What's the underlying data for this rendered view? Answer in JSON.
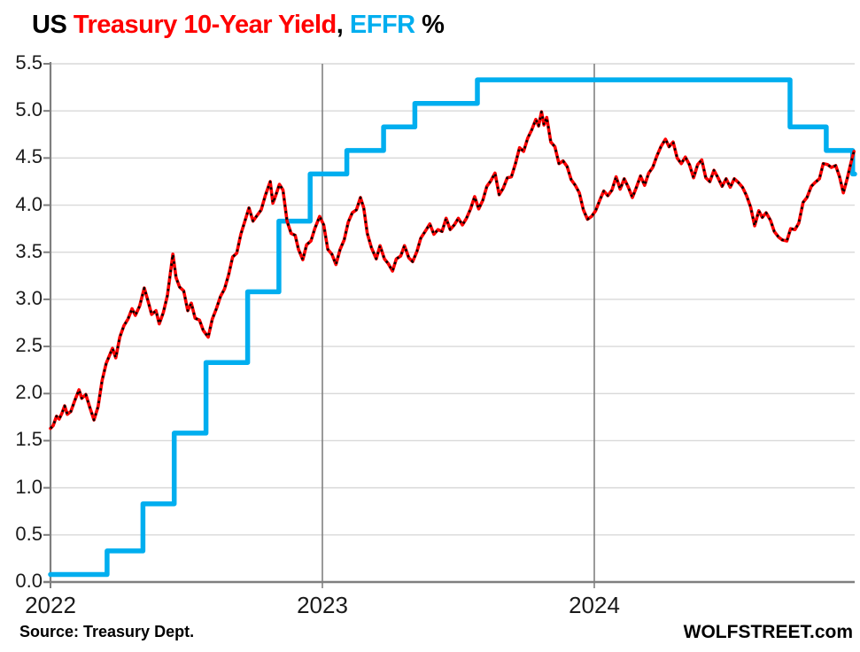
{
  "title": {
    "parts": [
      {
        "text": "US ",
        "color": "#000000"
      },
      {
        "text": "Treasury 10-Year Yield",
        "color": "#FF0000"
      },
      {
        "text": ", ",
        "color": "#000000"
      },
      {
        "text": "EFFR",
        "color": "#00AEEF"
      },
      {
        "text": " %",
        "color": "#000000"
      }
    ]
  },
  "footer": {
    "source": "Source: Treasury Dept.",
    "brand": "WOLFSTREET.com"
  },
  "chart_data": {
    "type": "line",
    "title": "US Treasury 10-Year Yield, EFFR %",
    "xlabel": "",
    "ylabel": "%",
    "ylim": [
      0,
      5.5
    ],
    "xlim": [
      2022,
      2024.96
    ],
    "grid": true,
    "legend_position": "colored-words-in-title",
    "yticks": [
      "0.0",
      "0.5",
      "1.0",
      "1.5",
      "2.0",
      "2.5",
      "3.0",
      "3.5",
      "4.0",
      "4.5",
      "5.0",
      "5.5"
    ],
    "xticks": [
      {
        "label": "2022",
        "x": 2022
      },
      {
        "label": "2023",
        "x": 2023
      },
      {
        "label": "2024",
        "x": 2024
      }
    ],
    "colors": {
      "background": "#FFFFFF",
      "grid": "#D9D9D9",
      "axis": "#7F7F7F",
      "year_line": "#808080",
      "effr_blue": "#00AEEF",
      "yield_red": "#FF0000",
      "dash_black": "#000000"
    },
    "series": [
      {
        "name": "EFFR",
        "draw": "step",
        "color": "#00AEEF",
        "stroke_width": 5.5,
        "points": [
          [
            2022.0,
            0.08
          ],
          [
            2022.208,
            0.33
          ],
          [
            2022.34,
            0.83
          ],
          [
            2022.455,
            1.58
          ],
          [
            2022.572,
            2.33
          ],
          [
            2022.725,
            3.08
          ],
          [
            2022.84,
            3.83
          ],
          [
            2022.955,
            4.33
          ],
          [
            2023.09,
            4.58
          ],
          [
            2023.225,
            4.83
          ],
          [
            2023.34,
            5.08
          ],
          [
            2023.57,
            5.33
          ],
          [
            2024.72,
            4.83
          ],
          [
            2024.853,
            4.58
          ],
          [
            2024.95,
            4.33
          ],
          [
            2024.958,
            4.33
          ]
        ]
      },
      {
        "name": "US Treasury 10-Year Yield",
        "draw": "line",
        "color": "#FF0000",
        "stroke_width": 3.6,
        "dash_overlay": {
          "color": "#000000",
          "stroke_width": 2.6,
          "dasharray": "2.6 4.6"
        },
        "points": [
          [
            2022.0,
            1.63
          ],
          [
            2022.01,
            1.66
          ],
          [
            2022.022,
            1.76
          ],
          [
            2022.032,
            1.73
          ],
          [
            2022.042,
            1.79
          ],
          [
            2022.052,
            1.87
          ],
          [
            2022.062,
            1.78
          ],
          [
            2022.075,
            1.81
          ],
          [
            2022.09,
            1.93
          ],
          [
            2022.105,
            2.04
          ],
          [
            2022.115,
            1.95
          ],
          [
            2022.13,
            1.99
          ],
          [
            2022.145,
            1.85
          ],
          [
            2022.16,
            1.72
          ],
          [
            2022.175,
            1.86
          ],
          [
            2022.19,
            2.14
          ],
          [
            2022.205,
            2.32
          ],
          [
            2022.228,
            2.48
          ],
          [
            2022.24,
            2.38
          ],
          [
            2022.255,
            2.6
          ],
          [
            2022.27,
            2.72
          ],
          [
            2022.285,
            2.79
          ],
          [
            2022.3,
            2.9
          ],
          [
            2022.312,
            2.83
          ],
          [
            2022.328,
            2.93
          ],
          [
            2022.345,
            3.12
          ],
          [
            2022.358,
            2.99
          ],
          [
            2022.372,
            2.84
          ],
          [
            2022.388,
            2.88
          ],
          [
            2022.4,
            2.74
          ],
          [
            2022.415,
            2.86
          ],
          [
            2022.43,
            3.04
          ],
          [
            2022.45,
            3.48
          ],
          [
            2022.462,
            3.23
          ],
          [
            2022.475,
            3.13
          ],
          [
            2022.49,
            3.09
          ],
          [
            2022.505,
            2.88
          ],
          [
            2022.518,
            2.96
          ],
          [
            2022.532,
            2.8
          ],
          [
            2022.548,
            2.78
          ],
          [
            2022.562,
            2.67
          ],
          [
            2022.58,
            2.6
          ],
          [
            2022.595,
            2.79
          ],
          [
            2022.61,
            2.9
          ],
          [
            2022.625,
            3.03
          ],
          [
            2022.64,
            3.11
          ],
          [
            2022.655,
            3.26
          ],
          [
            2022.67,
            3.45
          ],
          [
            2022.685,
            3.49
          ],
          [
            2022.7,
            3.69
          ],
          [
            2022.715,
            3.83
          ],
          [
            2022.73,
            3.97
          ],
          [
            2022.745,
            3.83
          ],
          [
            2022.76,
            3.89
          ],
          [
            2022.775,
            3.95
          ],
          [
            2022.79,
            4.1
          ],
          [
            2022.808,
            4.25
          ],
          [
            2022.818,
            4.02
          ],
          [
            2022.828,
            4.1
          ],
          [
            2022.842,
            4.22
          ],
          [
            2022.855,
            4.16
          ],
          [
            2022.87,
            3.83
          ],
          [
            2022.885,
            3.7
          ],
          [
            2022.9,
            3.68
          ],
          [
            2022.912,
            3.53
          ],
          [
            2022.928,
            3.42
          ],
          [
            2022.942,
            3.58
          ],
          [
            2022.958,
            3.62
          ],
          [
            2022.972,
            3.75
          ],
          [
            2022.99,
            3.88
          ],
          [
            2023.005,
            3.79
          ],
          [
            2023.02,
            3.53
          ],
          [
            2023.035,
            3.48
          ],
          [
            2023.05,
            3.37
          ],
          [
            2023.065,
            3.53
          ],
          [
            2023.08,
            3.63
          ],
          [
            2023.095,
            3.82
          ],
          [
            2023.11,
            3.92
          ],
          [
            2023.125,
            3.95
          ],
          [
            2023.14,
            4.08
          ],
          [
            2023.152,
            3.97
          ],
          [
            2023.165,
            3.7
          ],
          [
            2023.18,
            3.55
          ],
          [
            2023.198,
            3.43
          ],
          [
            2023.212,
            3.57
          ],
          [
            2023.228,
            3.43
          ],
          [
            2023.242,
            3.38
          ],
          [
            2023.258,
            3.3
          ],
          [
            2023.272,
            3.43
          ],
          [
            2023.288,
            3.46
          ],
          [
            2023.302,
            3.57
          ],
          [
            2023.318,
            3.44
          ],
          [
            2023.332,
            3.4
          ],
          [
            2023.348,
            3.51
          ],
          [
            2023.362,
            3.65
          ],
          [
            2023.378,
            3.72
          ],
          [
            2023.395,
            3.8
          ],
          [
            2023.41,
            3.69
          ],
          [
            2023.425,
            3.74
          ],
          [
            2023.44,
            3.72
          ],
          [
            2023.455,
            3.86
          ],
          [
            2023.47,
            3.74
          ],
          [
            2023.485,
            3.79
          ],
          [
            2023.5,
            3.86
          ],
          [
            2023.515,
            3.79
          ],
          [
            2023.53,
            3.86
          ],
          [
            2023.545,
            3.96
          ],
          [
            2023.56,
            4.09
          ],
          [
            2023.575,
            3.96
          ],
          [
            2023.59,
            4.05
          ],
          [
            2023.605,
            4.2
          ],
          [
            2023.62,
            4.26
          ],
          [
            2023.635,
            4.34
          ],
          [
            2023.65,
            4.11
          ],
          [
            2023.665,
            4.18
          ],
          [
            2023.68,
            4.29
          ],
          [
            2023.695,
            4.3
          ],
          [
            2023.71,
            4.44
          ],
          [
            2023.725,
            4.61
          ],
          [
            2023.74,
            4.57
          ],
          [
            2023.755,
            4.71
          ],
          [
            2023.77,
            4.8
          ],
          [
            2023.785,
            4.91
          ],
          [
            2023.795,
            4.84
          ],
          [
            2023.806,
            4.99
          ],
          [
            2023.815,
            4.85
          ],
          [
            2023.825,
            4.93
          ],
          [
            2023.84,
            4.67
          ],
          [
            2023.855,
            4.62
          ],
          [
            2023.87,
            4.44
          ],
          [
            2023.885,
            4.47
          ],
          [
            2023.9,
            4.41
          ],
          [
            2023.915,
            4.27
          ],
          [
            2023.93,
            4.21
          ],
          [
            2023.945,
            4.13
          ],
          [
            2023.96,
            3.95
          ],
          [
            2023.975,
            3.85
          ],
          [
            2023.99,
            3.88
          ],
          [
            2024.005,
            3.94
          ],
          [
            2024.02,
            4.05
          ],
          [
            2024.035,
            4.15
          ],
          [
            2024.05,
            4.1
          ],
          [
            2024.065,
            4.16
          ],
          [
            2024.08,
            4.3
          ],
          [
            2024.095,
            4.17
          ],
          [
            2024.11,
            4.28
          ],
          [
            2024.125,
            4.19
          ],
          [
            2024.14,
            4.08
          ],
          [
            2024.155,
            4.19
          ],
          [
            2024.17,
            4.31
          ],
          [
            2024.185,
            4.21
          ],
          [
            2024.2,
            4.34
          ],
          [
            2024.215,
            4.4
          ],
          [
            2024.23,
            4.52
          ],
          [
            2024.245,
            4.62
          ],
          [
            2024.262,
            4.7
          ],
          [
            2024.275,
            4.62
          ],
          [
            2024.29,
            4.67
          ],
          [
            2024.305,
            4.5
          ],
          [
            2024.32,
            4.44
          ],
          [
            2024.335,
            4.51
          ],
          [
            2024.35,
            4.43
          ],
          [
            2024.365,
            4.29
          ],
          [
            2024.38,
            4.43
          ],
          [
            2024.395,
            4.48
          ],
          [
            2024.41,
            4.29
          ],
          [
            2024.425,
            4.25
          ],
          [
            2024.44,
            4.37
          ],
          [
            2024.455,
            4.29
          ],
          [
            2024.47,
            4.2
          ],
          [
            2024.485,
            4.28
          ],
          [
            2024.5,
            4.19
          ],
          [
            2024.515,
            4.28
          ],
          [
            2024.53,
            4.24
          ],
          [
            2024.545,
            4.19
          ],
          [
            2024.56,
            4.1
          ],
          [
            2024.575,
            3.98
          ],
          [
            2024.59,
            3.78
          ],
          [
            2024.605,
            3.94
          ],
          [
            2024.618,
            3.87
          ],
          [
            2024.632,
            3.92
          ],
          [
            2024.648,
            3.84
          ],
          [
            2024.662,
            3.72
          ],
          [
            2024.678,
            3.66
          ],
          [
            2024.692,
            3.63
          ],
          [
            2024.708,
            3.62
          ],
          [
            2024.722,
            3.75
          ],
          [
            2024.738,
            3.74
          ],
          [
            2024.752,
            3.81
          ],
          [
            2024.768,
            4.03
          ],
          [
            2024.782,
            4.08
          ],
          [
            2024.798,
            4.2
          ],
          [
            2024.812,
            4.24
          ],
          [
            2024.828,
            4.28
          ],
          [
            2024.842,
            4.44
          ],
          [
            2024.858,
            4.43
          ],
          [
            2024.872,
            4.4
          ],
          [
            2024.888,
            4.42
          ],
          [
            2024.902,
            4.3
          ],
          [
            2024.916,
            4.13
          ],
          [
            2024.93,
            4.28
          ],
          [
            2024.944,
            4.45
          ],
          [
            2024.955,
            4.57
          ]
        ]
      }
    ]
  }
}
